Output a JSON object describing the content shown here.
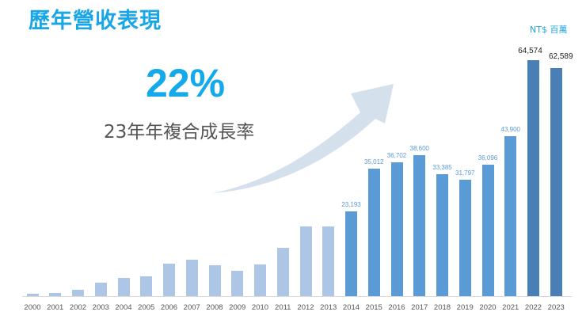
{
  "header": {
    "title": "歷年營收表現",
    "unit": "NT$ 百萬"
  },
  "highlight": {
    "value": "22%",
    "label": "23年年複合成長率"
  },
  "colors": {
    "title": "#19a6e6",
    "bar_early": "#adc6e5",
    "bar_mid": "#5b9bd5",
    "bar_recent": "#4a7fb5",
    "arrow": "#d5e0ed"
  },
  "chart_data": {
    "type": "bar",
    "title": "歷年營收表現",
    "unit": "NT$ 百萬",
    "xlabel": "",
    "ylabel": "",
    "grid": false,
    "ylim": [
      0,
      70000
    ],
    "categories": [
      "2000",
      "2001",
      "2002",
      "2003",
      "2004",
      "2005",
      "2006",
      "2007",
      "2008",
      "2009",
      "2010",
      "2011",
      "2012",
      "2013",
      "2014",
      "2015",
      "2016",
      "2017",
      "2018",
      "2019",
      "2020",
      "2021",
      "2022",
      "2023"
    ],
    "values": [
      650,
      870,
      1830,
      3700,
      4900,
      5500,
      8900,
      10000,
      8500,
      6900,
      8700,
      13200,
      19200,
      19000,
      23193,
      35012,
      36702,
      38600,
      33385,
      31797,
      36096,
      43900,
      64574,
      62589
    ],
    "data_labels": [
      "",
      "",
      "",
      "",
      "",
      "",
      "",
      "",
      "",
      "",
      "",
      "",
      "",
      "",
      "23,193",
      "35,012",
      "36,702",
      "38,600",
      "33,385",
      "31,797",
      "36,096",
      "43,900",
      "64,574",
      "62,589"
    ],
    "annotations": [
      {
        "text": "22%",
        "subtext": "23年年複合成長率"
      }
    ]
  }
}
